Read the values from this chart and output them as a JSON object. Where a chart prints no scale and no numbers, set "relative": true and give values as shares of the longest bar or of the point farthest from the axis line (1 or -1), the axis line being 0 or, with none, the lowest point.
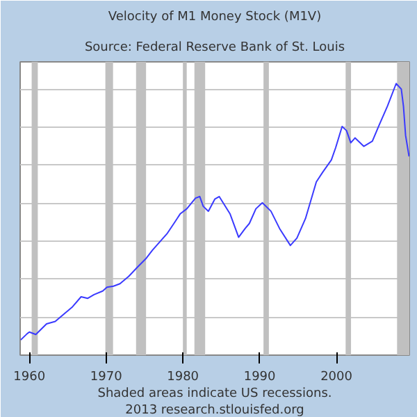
{
  "chart_data": {
    "type": "line",
    "title": "Velocity of M1 Money Stock (M1V)",
    "subtitle": "Source: Federal Reserve Bank of St. Louis",
    "annotations": [
      "Shaded areas indicate US recessions.",
      "2013 research.stlouisfed.org"
    ],
    "relative": true,
    "grid": "y",
    "marker": "none",
    "line_style": "solid",
    "xlim": [
      1958.8,
      2009.5
    ],
    "xticks": [
      1960,
      1970,
      1980,
      1990,
      2000
    ],
    "bands": [
      {
        "axis": "x",
        "from": 1960.3,
        "to": 1961.1,
        "color": "#c0c0c0"
      },
      {
        "axis": "x",
        "from": 1969.9,
        "to": 1970.9,
        "color": "#c0c0c0"
      },
      {
        "axis": "x",
        "from": 1973.9,
        "to": 1975.2,
        "color": "#c0c0c0"
      },
      {
        "axis": "x",
        "from": 1980.0,
        "to": 1980.5,
        "color": "#c0c0c0"
      },
      {
        "axis": "x",
        "from": 1981.5,
        "to": 1982.9,
        "color": "#c0c0c0"
      },
      {
        "axis": "x",
        "from": 1990.5,
        "to": 1991.2,
        "color": "#c0c0c0"
      },
      {
        "axis": "x",
        "from": 2001.2,
        "to": 2001.9,
        "color": "#c0c0c0"
      },
      {
        "axis": "x",
        "from": 2007.9,
        "to": 2009.5,
        "color": "#c0c0c0"
      }
    ],
    "series": [
      {
        "color": "#3a3aff",
        "x": [
          1958.87,
          1959.71,
          1960.0,
          1960.84,
          1962.24,
          1963.37,
          1964.49,
          1965.62,
          1966.74,
          1967.58,
          1968.43,
          1969.55,
          1970.11,
          1970.96,
          1971.8,
          1972.93,
          1974.05,
          1975.17,
          1976.02,
          1976.86,
          1977.98,
          1978.83,
          1979.67,
          1980.51,
          1981.64,
          1982.2,
          1982.65,
          1983.32,
          1984.17,
          1984.73,
          1986.13,
          1987.26,
          1988.1,
          1988.66,
          1989.51,
          1990.35,
          1991.47,
          1992.6,
          1994.0,
          1994.85,
          1995.97,
          1997.38,
          1998.22,
          1999.34,
          1999.9,
          2000.74,
          2001.31,
          2001.87,
          2002.43,
          2003.56,
          2004.68,
          2005.53,
          2006.65,
          2007.78,
          2008.45,
          2008.73,
          2009.01,
          2009.46
        ],
        "values": [
          0.056,
          0.079,
          0.085,
          0.076,
          0.115,
          0.124,
          0.151,
          0.178,
          0.215,
          0.209,
          0.223,
          0.236,
          0.25,
          0.254,
          0.263,
          0.29,
          0.323,
          0.355,
          0.386,
          0.413,
          0.449,
          0.485,
          0.521,
          0.539,
          0.578,
          0.584,
          0.548,
          0.53,
          0.575,
          0.584,
          0.521,
          0.434,
          0.466,
          0.485,
          0.539,
          0.561,
          0.53,
          0.466,
          0.404,
          0.431,
          0.503,
          0.638,
          0.674,
          0.719,
          0.764,
          0.842,
          0.827,
          0.782,
          0.8,
          0.769,
          0.788,
          0.845,
          0.917,
          1.0,
          0.98,
          0.917,
          0.809,
          0.732
        ]
      }
    ]
  }
}
